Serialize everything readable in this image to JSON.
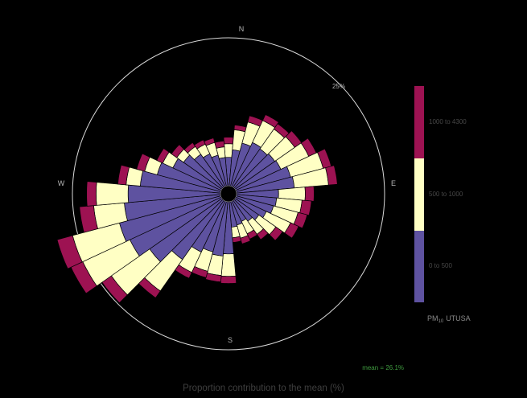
{
  "chart_data": {
    "type": "bar",
    "projection": "polar",
    "stacked": true,
    "xlabel": "Proportion contribution to the mean (%)",
    "directions": [
      "N",
      "E",
      "S",
      "W"
    ],
    "grid": [
      {
        "value": 25,
        "label": "25%"
      }
    ],
    "categories": [
      0,
      10,
      20,
      30,
      40,
      50,
      60,
      70,
      80,
      90,
      100,
      110,
      120,
      130,
      140,
      150,
      160,
      170,
      180,
      190,
      200,
      210,
      220,
      230,
      240,
      250,
      260,
      270,
      280,
      290,
      300,
      310,
      320,
      330,
      340,
      350
    ],
    "series": [
      {
        "name": "0 to 500",
        "color": "#5e52a0",
        "values": [
          4.8,
          6.1,
          7.5,
          8.2,
          7.9,
          8.2,
          8.4,
          9.5,
          9.8,
          7.1,
          6.8,
          6.5,
          5.7,
          4.9,
          4.3,
          3.8,
          4.1,
          4.3,
          8.8,
          9.2,
          8.8,
          9.5,
          12.2,
          14.9,
          17.0,
          17.7,
          16.3,
          15.6,
          13.6,
          11.1,
          9.0,
          7.9,
          6.8,
          6.1,
          5.4,
          4.8
        ]
      },
      {
        "name": "500 to 1000",
        "color": "#ffffc4",
        "values": [
          2.3,
          3.4,
          3.7,
          4.1,
          4.1,
          4.1,
          5.2,
          5.7,
          5.8,
          4.5,
          4.3,
          4.3,
          4.5,
          3.5,
          2.7,
          2.3,
          2.3,
          1.8,
          3.8,
          3.3,
          3.4,
          3.8,
          6.5,
          7.9,
          8.8,
          8.2,
          5.2,
          5.4,
          2.4,
          2.2,
          1.9,
          1.4,
          1.6,
          1.8,
          2.2,
          1.8
        ]
      },
      {
        "name": "1000 to 4300",
        "color": "#9d1252",
        "values": [
          1.1,
          0.8,
          1.1,
          1.1,
          1.1,
          1.4,
          1.4,
          1.4,
          1.5,
          1.5,
          1.6,
          1.6,
          1.5,
          1.4,
          1.1,
          1.0,
          1.0,
          0.8,
          1.2,
          1.1,
          1.1,
          1.1,
          1.4,
          1.9,
          2.2,
          2.7,
          2.4,
          1.6,
          1.4,
          1.4,
          1.1,
          1.1,
          0.8,
          0.8,
          0.8,
          1.0
        ]
      }
    ],
    "legend": {
      "title_main": "PM",
      "title_sub": "10",
      "title_suffix": "UTUSA",
      "placement": "right"
    },
    "annotation": "mean = 26.1%"
  }
}
